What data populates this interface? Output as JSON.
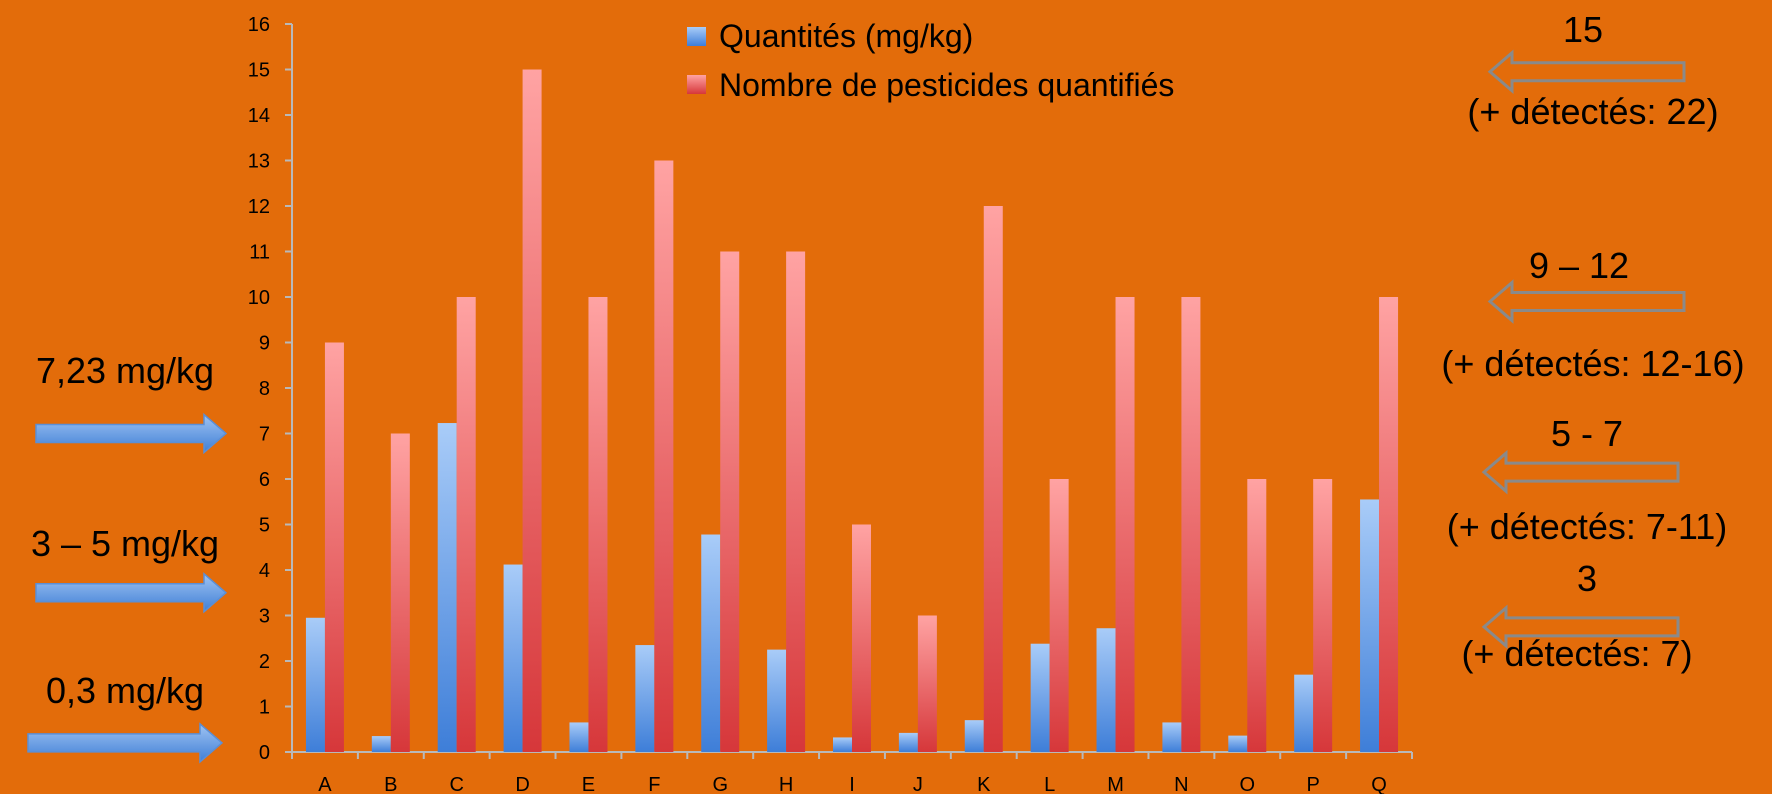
{
  "chart_data": {
    "type": "bar",
    "categories": [
      "A",
      "B",
      "C",
      "D",
      "E",
      "F",
      "G",
      "H",
      "I",
      "J",
      "K",
      "L",
      "M",
      "N",
      "O",
      "P",
      "Q"
    ],
    "series": [
      {
        "name": "Quantités (mg/kg)",
        "color": "#4F81BD",
        "values": [
          2.95,
          0.35,
          7.23,
          4.12,
          0.65,
          2.35,
          4.78,
          2.25,
          0.32,
          0.42,
          0.7,
          2.38,
          2.72,
          0.65,
          0.36,
          1.7,
          5.55
        ]
      },
      {
        "name": "Nombre de pesticides quantifiés",
        "color": "#E0484B",
        "values": [
          9,
          7,
          10,
          15,
          10,
          13,
          11,
          11,
          5,
          3,
          12,
          6,
          10,
          10,
          6,
          6,
          10
        ]
      }
    ],
    "ylim": [
      0,
      16
    ],
    "yticks": [
      "0",
      "1",
      "2",
      "3",
      "4",
      "5",
      "6",
      "7",
      "8",
      "9",
      "10",
      "11",
      "12",
      "13",
      "14",
      "15",
      "16"
    ],
    "legend_position": "top-center",
    "grid": false
  },
  "annotations": {
    "left": [
      {
        "text": "7,23 mg/kg",
        "value": 7.0
      },
      {
        "text": "3 – 5 mg/kg",
        "value": 3.5
      },
      {
        "text": "0,3 mg/kg",
        "value": 0.2
      }
    ],
    "right": [
      {
        "line1": "15",
        "line2": "(+ détectés: 22)",
        "value": 14.95
      },
      {
        "line1": "9 – 12",
        "line2": "(+ détectés: 12-16)",
        "value": 9.9
      },
      {
        "line1": "5 - 7",
        "line2": "(+ détectés: 7-11)",
        "value": 6.15
      },
      {
        "line1": "3",
        "line2": "(+ détectés: 7)",
        "value": 2.75
      }
    ]
  }
}
